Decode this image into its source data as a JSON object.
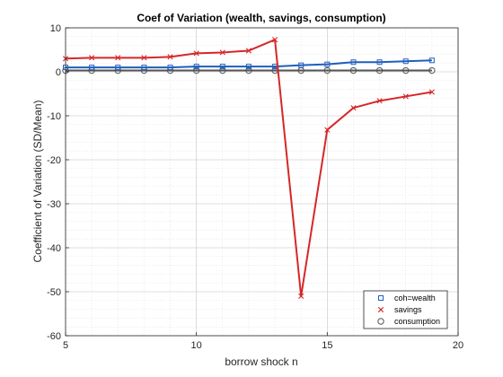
{
  "chart_data": {
    "type": "line",
    "title": "Coef of Variation (wealth, savings, consumption)",
    "xlabel": "borrow shock n",
    "ylabel": "Coefficient of Variation (SD/Mean)",
    "xlim": [
      5,
      20
    ],
    "ylim": [
      -60,
      10
    ],
    "xticks": [
      "5",
      "10",
      "15",
      "20"
    ],
    "yticks": [
      "10",
      "0",
      "-10",
      "-20",
      "-30",
      "-40",
      "-50",
      "-60"
    ],
    "grid": true,
    "legend_position": "bottom-right",
    "x": [
      5,
      6,
      7,
      8,
      9,
      10,
      11,
      12,
      13,
      14,
      15,
      16,
      17,
      18,
      19
    ],
    "series": [
      {
        "name": "coh=wealth",
        "color": "#1f5fbf",
        "marker": "square",
        "values": [
          1.0,
          1.0,
          1.0,
          1.0,
          1.0,
          1.2,
          1.2,
          1.2,
          1.2,
          1.5,
          1.7,
          2.2,
          2.2,
          2.4,
          2.6
        ]
      },
      {
        "name": "savings",
        "color": "#d62728",
        "marker": "x",
        "values": [
          3.0,
          3.2,
          3.2,
          3.2,
          3.4,
          4.2,
          4.4,
          4.8,
          7.3,
          -51.0,
          -13.2,
          -8.2,
          -6.6,
          -5.6,
          -4.6
        ]
      },
      {
        "name": "consumption",
        "color": "#555555",
        "marker": "circle",
        "values": [
          0.3,
          0.3,
          0.3,
          0.3,
          0.3,
          0.3,
          0.3,
          0.3,
          0.3,
          0.3,
          0.3,
          0.3,
          0.3,
          0.3,
          0.3
        ]
      }
    ]
  }
}
